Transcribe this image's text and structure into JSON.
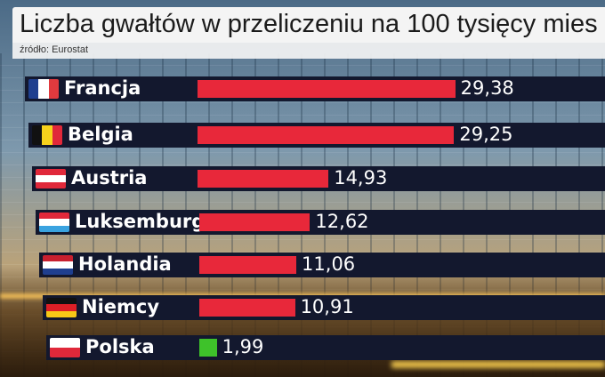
{
  "chart_data": {
    "type": "bar",
    "title": "Liczba gwałtów w przeliczeniu na 100 tysięcy mies",
    "subtitle": "źródło: Eurostat",
    "categories": [
      "Francja",
      "Belgia",
      "Austria",
      "Luksemburg",
      "Holandia",
      "Niemcy",
      "Polska"
    ],
    "values": [
      29.38,
      29.25,
      14.93,
      12.62,
      11.06,
      10.91,
      1.99
    ],
    "value_labels": [
      "29,38",
      "29,25",
      "14,93",
      "12,62",
      "11,06",
      "10,91",
      "1,99"
    ],
    "bar_colors": [
      "#e8283a",
      "#e8283a",
      "#e8283a",
      "#e8283a",
      "#e8283a",
      "#e8283a",
      "#3ec22a"
    ],
    "flag_icons": [
      "france-flag-icon",
      "belgium-flag-icon",
      "austria-flag-icon",
      "luxembourg-flag-icon",
      "netherlands-flag-icon",
      "germany-flag-icon",
      "poland-flag-icon"
    ],
    "xlabel": "",
    "ylabel": ""
  },
  "colors": {
    "row_background": "#13182e",
    "highlight_bar": "#3ec22a",
    "default_bar": "#e8283a",
    "text": "#ffffff"
  }
}
